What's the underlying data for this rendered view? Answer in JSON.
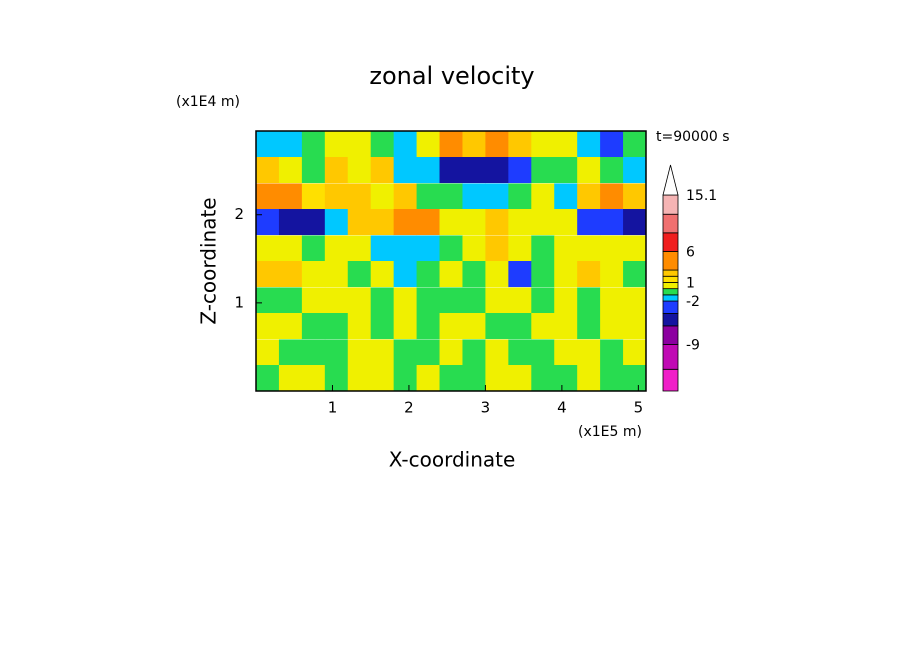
{
  "chart_data": {
    "type": "contour",
    "title": "zonal velocity",
    "x_label": "X-coordinate",
    "y_label": "Z-coordinate",
    "x_unit": "(x1E5 m)",
    "y_unit": "(x1E4 m)",
    "time_label": "t=90000 s",
    "xlim": [
      0,
      5.1
    ],
    "xticks": [
      1,
      2,
      3,
      4,
      5
    ],
    "ylim": [
      0,
      2.95
    ],
    "yticks": [
      1,
      2
    ],
    "x": [
      0.15,
      0.45,
      0.75,
      1.05,
      1.35,
      1.65,
      1.95,
      2.25,
      2.55,
      2.85,
      3.15,
      3.45,
      3.75,
      4.05,
      4.35,
      4.65,
      4.95
    ],
    "y": [
      2.8,
      2.51,
      2.21,
      1.92,
      1.62,
      1.33,
      1.03,
      0.74,
      0.44,
      0.15
    ],
    "z": [
      [
        -1.5,
        -1.5,
        -0.5,
        0.5,
        0.5,
        -0.5,
        -1.5,
        0.5,
        4,
        2.5,
        4,
        2.5,
        0.5,
        0.5,
        -1.5,
        -3,
        -0.5
      ],
      [
        2.5,
        0.5,
        -0.5,
        2.5,
        0.5,
        2.5,
        -1.5,
        -1.5,
        -5,
        -5,
        -5,
        -3,
        -0.5,
        -0.5,
        0.5,
        -0.5,
        -1.5
      ],
      [
        4,
        4,
        1.5,
        2.5,
        2.5,
        0.5,
        2.5,
        -0.5,
        -0.5,
        -1.5,
        -1.5,
        -0.5,
        0.5,
        -1.5,
        2.5,
        4,
        2.5
      ],
      [
        -3,
        -5,
        -5,
        -1.5,
        2.5,
        2.5,
        4,
        4,
        0.5,
        0.5,
        2.5,
        0.5,
        0.5,
        0.5,
        -3,
        -3,
        -5
      ],
      [
        0.5,
        0.5,
        -0.5,
        0.5,
        0.5,
        -1.5,
        -1.5,
        -1.5,
        -0.5,
        0.5,
        2.5,
        0.5,
        -0.5,
        0.5,
        0.5,
        0.5,
        0.5
      ],
      [
        2.5,
        2.5,
        0.5,
        0.5,
        -0.5,
        0.5,
        -1.5,
        -0.5,
        0.5,
        -0.5,
        0.5,
        -3,
        -0.5,
        0.5,
        2.5,
        0.5,
        -0.5
      ],
      [
        -0.5,
        -0.5,
        0.5,
        0.5,
        0.5,
        -0.5,
        0.5,
        -0.5,
        -0.5,
        -0.5,
        0.5,
        0.5,
        -0.5,
        0.5,
        -0.5,
        0.5,
        0.5
      ],
      [
        0.5,
        0.5,
        -0.5,
        -0.5,
        0.5,
        -0.5,
        0.5,
        -0.5,
        0.5,
        0.5,
        -0.5,
        -0.5,
        0.5,
        0.5,
        -0.5,
        0.5,
        0.5
      ],
      [
        0.5,
        -0.5,
        -0.5,
        -0.5,
        0.5,
        0.5,
        -0.5,
        -0.5,
        0.5,
        -0.5,
        0.5,
        -0.5,
        -0.5,
        0.5,
        0.5,
        -0.5,
        0.5
      ],
      [
        -0.5,
        0.5,
        0.5,
        -0.5,
        0.5,
        0.5,
        -0.5,
        0.5,
        -0.5,
        -0.5,
        0.5,
        0.5,
        -0.5,
        -0.5,
        0.5,
        -0.5,
        -0.5
      ]
    ],
    "colorbar": {
      "levels": [
        -16.5,
        -13,
        -9,
        -6,
        -4,
        -2,
        -1,
        0,
        1,
        2,
        3,
        6,
        9,
        12,
        15.1
      ],
      "colors": [
        "#f01ec8",
        "#c00ab4",
        "#8c00a0",
        "#1414a0",
        "#1e3cff",
        "#00c8ff",
        "#28dc50",
        "#f0f000",
        "#ffe000",
        "#ffc800",
        "#ff8c00",
        "#f01e1e",
        "#f07070",
        "#f5b4b4"
      ],
      "over_color": "#ffffff",
      "ticks": [
        15.1,
        6,
        1,
        -2,
        -9
      ]
    }
  }
}
